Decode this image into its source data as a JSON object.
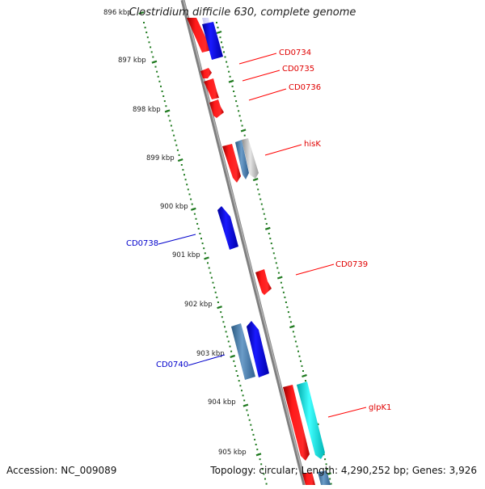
{
  "title": "Clostridium difficile 630, complete genome",
  "footer": {
    "accession": "Accession: NC_009089",
    "topology": "Topology: circular; Length: 4,290,252 bp; Genes: 3,926"
  },
  "colors": {
    "backbone": "#8a8a8a",
    "ticks": "#1f7a1f",
    "forward_gene": "#ff0000",
    "reverse_gene": "#0000ee",
    "steel_gene": "#4a7fae",
    "cyan_gene": "#00e5e5",
    "grey_gene": "#b8b8b8"
  },
  "kbp_labels": [
    "896 kbp",
    "897 kbp",
    "898 kbp",
    "899 kbp",
    "900 kbp",
    "901 kbp",
    "902 kbp",
    "903 kbp",
    "904 kbp",
    "905 kbp"
  ],
  "gene_labels": [
    {
      "text": "CD0734",
      "strand": "forward"
    },
    {
      "text": "CD0735",
      "strand": "forward"
    },
    {
      "text": "CD0736",
      "strand": "forward"
    },
    {
      "text": "hisK",
      "strand": "forward"
    },
    {
      "text": "CD0738",
      "strand": "reverse"
    },
    {
      "text": "CD0739",
      "strand": "forward"
    },
    {
      "text": "CD0740",
      "strand": "reverse"
    },
    {
      "text": "glpK1",
      "strand": "forward"
    }
  ]
}
